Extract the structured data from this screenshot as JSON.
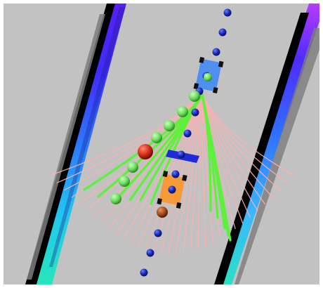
{
  "scene": {
    "kind": "rviz-style-planner-visualization",
    "colors": {
      "ground": "#c2c2c2",
      "frame": "#ffffff",
      "candidate_path_light": "#ffb0b0",
      "selected_path": "#5ef03a",
      "waypoint": "#1527b8",
      "obstacle": "#1f2bd8",
      "ego_robot": "#f59a37",
      "lead_robot": "#4f8ff0",
      "red_marker": "#d22a1a",
      "brown_marker": "#a44b17",
      "green_marker": "#6adc5a",
      "wall_dark": "#000000",
      "wall_shadow": "#7c7c7c"
    },
    "wall_gradient_left": [
      "#26e6b9",
      "#22c6f2",
      "#2c78ff",
      "#3f2dff",
      "#5a1ef2"
    ],
    "wall_gradient_right": [
      "#2ae1c4",
      "#3bb8ff",
      "#2f6dff",
      "#4f2bff",
      "#b43cff"
    ],
    "icons": {
      "ego_robot": "robot-icon",
      "lead_robot": "robot-icon"
    }
  }
}
